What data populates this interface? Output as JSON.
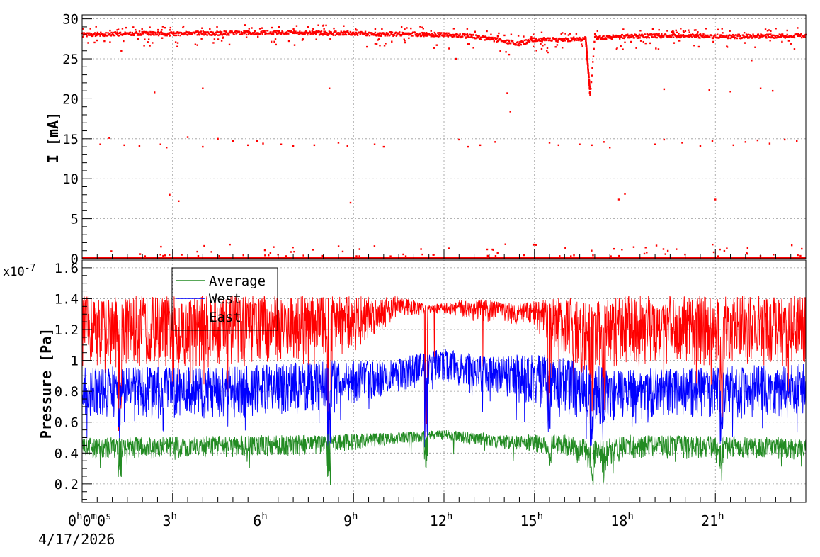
{
  "chart_data": [
    {
      "type": "scatter",
      "ylabel": "I [mA]",
      "ylim": [
        0,
        30.5
      ],
      "y_ticks": [
        "0",
        "5",
        "10",
        "15",
        "20",
        "25",
        "30"
      ],
      "grid": true,
      "colors": {
        "series": "#ff0000"
      },
      "series": [
        {
          "baseline_profile": [
            [
              0,
              28.0
            ],
            [
              1,
              28.1
            ],
            [
              2,
              28.2
            ],
            [
              3,
              28.1
            ],
            [
              4,
              28.2
            ],
            [
              5,
              28.2
            ],
            [
              6,
              28.3
            ],
            [
              7,
              28.3
            ],
            [
              8,
              28.2
            ],
            [
              9,
              28.2
            ],
            [
              10,
              28.1
            ],
            [
              11,
              28.1
            ],
            [
              12,
              28.0
            ],
            [
              13,
              27.8
            ],
            [
              14,
              27.2
            ],
            [
              14.5,
              26.9
            ],
            [
              15,
              27.4
            ],
            [
              16,
              27.4
            ],
            [
              16.7,
              27.5
            ],
            [
              16.85,
              20.5
            ],
            [
              17.0,
              27.6
            ],
            [
              18,
              27.8
            ],
            [
              19,
              27.9
            ],
            [
              20,
              27.9
            ],
            [
              21,
              27.8
            ],
            [
              22,
              27.8
            ],
            [
              24,
              27.9
            ]
          ],
          "outliers_near_15mA": [
            [
              0.6,
              14.3
            ],
            [
              0.9,
              15.1
            ],
            [
              1.4,
              14.2
            ],
            [
              1.9,
              14.1
            ],
            [
              2.6,
              14.3
            ],
            [
              2.8,
              13.9
            ],
            [
              3.5,
              15.2
            ],
            [
              4.0,
              14.0
            ],
            [
              4.5,
              15.0
            ],
            [
              5.0,
              14.7
            ],
            [
              5.5,
              14.2
            ],
            [
              5.8,
              14.7
            ],
            [
              6.0,
              14.4
            ],
            [
              6.6,
              14.3
            ],
            [
              7.0,
              14.1
            ],
            [
              7.7,
              14.2
            ],
            [
              8.5,
              14.5
            ],
            [
              8.8,
              14.1
            ],
            [
              9.7,
              14.3
            ],
            [
              10.0,
              14.0
            ],
            [
              12.5,
              14.9
            ],
            [
              12.8,
              14.0
            ],
            [
              13.2,
              14.2
            ],
            [
              13.7,
              14.6
            ],
            [
              15.5,
              14.5
            ],
            [
              15.8,
              14.2
            ],
            [
              16.5,
              14.3
            ],
            [
              16.9,
              14.2
            ],
            [
              17.3,
              14.6
            ],
            [
              17.5,
              13.9
            ],
            [
              19.0,
              14.3
            ],
            [
              19.3,
              14.9
            ],
            [
              19.9,
              14.5
            ],
            [
              20.5,
              14.1
            ],
            [
              20.9,
              14.7
            ],
            [
              21.6,
              14.2
            ],
            [
              22.0,
              14.6
            ],
            [
              22.4,
              14.8
            ],
            [
              22.8,
              14.4
            ],
            [
              23.3,
              14.9
            ],
            [
              23.7,
              14.7
            ]
          ],
          "outliers_other": [
            [
              0.2,
              27.0
            ],
            [
              1.3,
              26.0
            ],
            [
              2.4,
              20.8
            ],
            [
              2.9,
              8.0
            ],
            [
              3.2,
              7.2
            ],
            [
              4.0,
              21.3
            ],
            [
              8.2,
              21.3
            ],
            [
              8.9,
              7.0
            ],
            [
              12.4,
              25.0
            ],
            [
              14.1,
              20.7
            ],
            [
              14.2,
              18.4
            ],
            [
              17.8,
              7.4
            ],
            [
              18.0,
              8.1
            ],
            [
              19.3,
              21.2
            ],
            [
              20.8,
              21.1
            ],
            [
              21.0,
              7.4
            ],
            [
              21.5,
              20.9
            ],
            [
              22.2,
              24.8
            ],
            [
              22.5,
              21.3
            ],
            [
              22.9,
              21.0
            ]
          ],
          "outliers_near_zero_count": 90
        }
      ]
    },
    {
      "type": "line",
      "ylabel": "Pressure [Pa]",
      "y_multiplier": "x10",
      "y_multiplier_exp": "-7",
      "ylim": [
        0.08,
        1.65
      ],
      "y_ticks": [
        "0.2",
        "0.4",
        "0.6",
        "0.8",
        "1",
        "1.2",
        "1.4",
        "1.6"
      ],
      "x_ticks_h": [
        "0",
        "3",
        "6",
        "9",
        "12",
        "15",
        "18",
        "21"
      ],
      "x_time_unit": "h",
      "x_origin_label": {
        "h": "0",
        "m": "0",
        "s": "0",
        "h_unit": "h",
        "m_unit": "m",
        "s_unit": "s"
      },
      "x_date": "4/17/2026",
      "xlim_hours": [
        0,
        24
      ],
      "grid": true,
      "legend": {
        "position": "top-left",
        "entries": [
          {
            "name": "Average",
            "color": "#228b22"
          },
          {
            "name": "West",
            "color": "#0000ff"
          },
          {
            "name": "East",
            "color": "#ff0000"
          }
        ]
      },
      "series": [
        {
          "name": "East",
          "color": "#ff0000",
          "upper_profile": [
            [
              0,
              1.42
            ],
            [
              5,
              1.42
            ],
            [
              8,
              1.42
            ],
            [
              10.5,
              1.42
            ],
            [
              11.5,
              1.36
            ],
            [
              13,
              1.4
            ],
            [
              14.5,
              1.37
            ],
            [
              16,
              1.42
            ],
            [
              17,
              1.38
            ],
            [
              18,
              1.42
            ],
            [
              24,
              1.42
            ]
          ],
          "lower_profile": [
            [
              0,
              0.95
            ],
            [
              5,
              0.95
            ],
            [
              9,
              1.05
            ],
            [
              10.5,
              1.28
            ],
            [
              12,
              1.3
            ],
            [
              13,
              1.25
            ],
            [
              14,
              1.25
            ],
            [
              15,
              1.2
            ],
            [
              16,
              1.0
            ],
            [
              17,
              0.85
            ],
            [
              18,
              0.98
            ],
            [
              24,
              0.95
            ]
          ],
          "dips": [
            [
              1.25,
              0.5
            ],
            [
              8.2,
              0.42
            ],
            [
              11.4,
              0.45
            ],
            [
              15.5,
              0.55
            ],
            [
              16.9,
              0.47
            ],
            [
              17.3,
              0.55
            ],
            [
              21.2,
              0.5
            ]
          ]
        },
        {
          "name": "West",
          "color": "#0000ff",
          "upper_profile": [
            [
              0,
              0.96
            ],
            [
              5,
              0.96
            ],
            [
              8,
              1.0
            ],
            [
              10,
              1.0
            ],
            [
              12,
              1.08
            ],
            [
              13.5,
              1.02
            ],
            [
              15,
              1.05
            ],
            [
              16.5,
              1.0
            ],
            [
              17.5,
              0.94
            ],
            [
              24,
              0.98
            ]
          ],
          "lower_profile": [
            [
              0,
              0.62
            ],
            [
              5,
              0.62
            ],
            [
              8,
              0.66
            ],
            [
              10.5,
              0.8
            ],
            [
              12,
              0.85
            ],
            [
              13.5,
              0.78
            ],
            [
              14.5,
              0.72
            ],
            [
              16,
              0.66
            ],
            [
              17,
              0.55
            ],
            [
              18,
              0.62
            ],
            [
              24,
              0.62
            ]
          ],
          "dips": [
            [
              1.25,
              0.45
            ],
            [
              8.2,
              0.4
            ],
            [
              11.4,
              0.42
            ],
            [
              15.5,
              0.5
            ],
            [
              16.9,
              0.38
            ],
            [
              17.3,
              0.45
            ],
            [
              21.2,
              0.45
            ]
          ]
        },
        {
          "name": "Average",
          "color": "#228b22",
          "upper_profile": [
            [
              0,
              0.5
            ],
            [
              8,
              0.52
            ],
            [
              10,
              0.53
            ],
            [
              12,
              0.55
            ],
            [
              14,
              0.52
            ],
            [
              16,
              0.52
            ],
            [
              17,
              0.48
            ],
            [
              18,
              0.52
            ],
            [
              24,
              0.5
            ]
          ],
          "lower_profile": [
            [
              0,
              0.36
            ],
            [
              8,
              0.38
            ],
            [
              10,
              0.45
            ],
            [
              12,
              0.48
            ],
            [
              14,
              0.42
            ],
            [
              16,
              0.38
            ],
            [
              17,
              0.28
            ],
            [
              18,
              0.36
            ],
            [
              24,
              0.36
            ]
          ],
          "dips": [
            [
              1.25,
              0.22
            ],
            [
              8.2,
              0.18
            ],
            [
              11.4,
              0.24
            ],
            [
              15.5,
              0.3
            ],
            [
              16.9,
              0.17
            ],
            [
              17.3,
              0.2
            ],
            [
              21.2,
              0.17
            ]
          ]
        }
      ]
    }
  ]
}
